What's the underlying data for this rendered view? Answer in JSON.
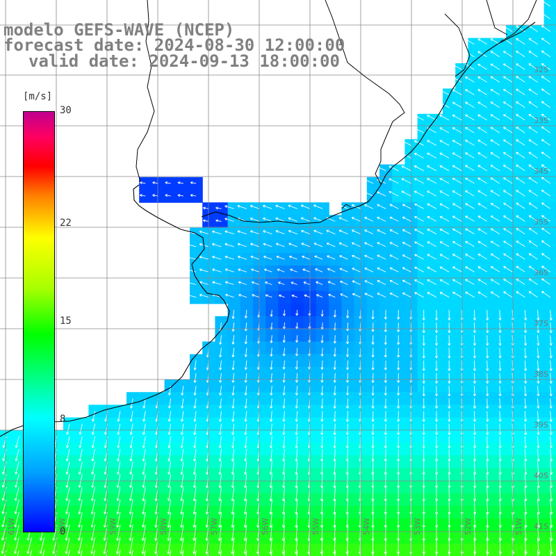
{
  "title": {
    "line1": "modelo GEFS-WAVE (NCEP)",
    "line2": "forecast date: 2024-08-30 12:00:00",
    "line3": "valid date: 2024-09-13 18:00:00"
  },
  "colorbar": {
    "unit": "[m/s]",
    "ticks": [
      {
        "label": "30",
        "value": 30
      },
      {
        "label": "22",
        "value": 22
      },
      {
        "label": "15",
        "value": 15
      },
      {
        "label": "8",
        "value": 8
      },
      {
        "label": "0",
        "value": 0
      }
    ],
    "colors": [
      "#0000ff",
      "#00a0ff",
      "#00ffff",
      "#00ff00",
      "#ffff00",
      "#ff8000",
      "#ff0000",
      "#c00090"
    ]
  },
  "lat_labels": [
    "32S",
    "33S",
    "34S",
    "35S",
    "36S",
    "37S",
    "38S",
    "39S",
    "40S",
    "41S"
  ],
  "lon_labels": [
    "61W",
    "60W",
    "59W",
    "58W",
    "57W",
    "56W",
    "55W",
    "54W",
    "53W",
    "52W",
    "51W"
  ],
  "colors": {
    "land": "#ffffff",
    "coast": "#000000",
    "grid": "#888888",
    "arrow": "#ffffff",
    "title": "#808080"
  }
}
